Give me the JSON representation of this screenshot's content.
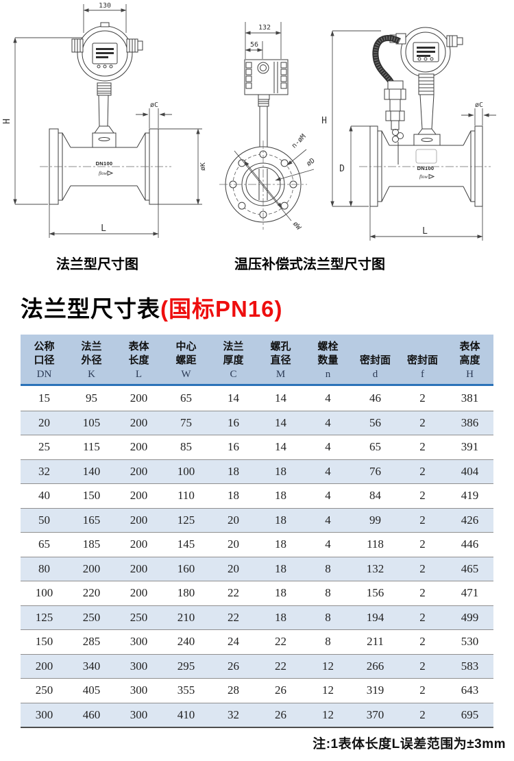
{
  "colors": {
    "header_bg": "#b7cbe2",
    "alt_row_bg": "#dce6f2",
    "accent_line": "#2a72b8",
    "title_red": "#ee0e0e",
    "row_divider": "#8f8f8f",
    "table_bottom_border": "#4d4d4d"
  },
  "diagrams": {
    "left": {
      "caption": "法兰型尺寸图",
      "dim_width": "130",
      "dim_height": "H",
      "dim_flange_thickness": "øC",
      "dim_flange_od": "øK",
      "dim_length": "L",
      "body_label": "DN100",
      "flow_label": "flow"
    },
    "front": {
      "dim_width": "132",
      "dim_offset": "56",
      "dim_bolt_holes": "n-øM",
      "dim_bore": "øD",
      "dim_bolt_circle": "øW"
    },
    "right": {
      "caption": "温压补偿式法兰型尺寸图",
      "dim_height": "H",
      "dim_body_od": "D",
      "dim_flange_thickness": "øC",
      "dim_length": "L",
      "body_label": "DN100",
      "flow_label": "flow"
    }
  },
  "table": {
    "title": "法兰型尺寸表",
    "title_suffix": "(国标PN16)",
    "note": "注:1表体长度L误差范围为±3mm",
    "columns": [
      {
        "cn": "公称\n口径",
        "code": "DN"
      },
      {
        "cn": "法兰\n外径",
        "code": "K"
      },
      {
        "cn": "表体\n长度",
        "code": "L"
      },
      {
        "cn": "中心\n螺距",
        "code": "W"
      },
      {
        "cn": "法兰\n厚度",
        "code": "C"
      },
      {
        "cn": "螺孔\n直径",
        "code": "M"
      },
      {
        "cn": "螺栓\n数量",
        "code": "n"
      },
      {
        "cn": "密封面",
        "code": "d"
      },
      {
        "cn": "密封面",
        "code": "f"
      },
      {
        "cn": "表体\n高度",
        "code": "H"
      }
    ],
    "rows": [
      [
        "15",
        "95",
        "200",
        "65",
        "14",
        "14",
        "4",
        "46",
        "2",
        "381"
      ],
      [
        "20",
        "105",
        "200",
        "75",
        "16",
        "14",
        "4",
        "56",
        "2",
        "386"
      ],
      [
        "25",
        "115",
        "200",
        "85",
        "16",
        "14",
        "4",
        "65",
        "2",
        "391"
      ],
      [
        "32",
        "140",
        "200",
        "100",
        "18",
        "18",
        "4",
        "76",
        "2",
        "404"
      ],
      [
        "40",
        "150",
        "200",
        "110",
        "18",
        "18",
        "4",
        "84",
        "2",
        "419"
      ],
      [
        "50",
        "165",
        "200",
        "125",
        "20",
        "18",
        "4",
        "99",
        "2",
        "426"
      ],
      [
        "65",
        "185",
        "200",
        "145",
        "20",
        "18",
        "4",
        "118",
        "2",
        "446"
      ],
      [
        "80",
        "200",
        "200",
        "160",
        "20",
        "18",
        "8",
        "132",
        "2",
        "465"
      ],
      [
        "100",
        "220",
        "200",
        "180",
        "22",
        "18",
        "8",
        "156",
        "2",
        "471"
      ],
      [
        "125",
        "250",
        "250",
        "210",
        "22",
        "18",
        "8",
        "194",
        "2",
        "499"
      ],
      [
        "150",
        "285",
        "300",
        "240",
        "24",
        "22",
        "8",
        "211",
        "2",
        "530"
      ],
      [
        "200",
        "340",
        "300",
        "295",
        "26",
        "22",
        "12",
        "266",
        "2",
        "583"
      ],
      [
        "250",
        "405",
        "300",
        "355",
        "28",
        "26",
        "12",
        "319",
        "2",
        "643"
      ],
      [
        "300",
        "460",
        "300",
        "410",
        "32",
        "26",
        "12",
        "370",
        "2",
        "695"
      ]
    ]
  }
}
